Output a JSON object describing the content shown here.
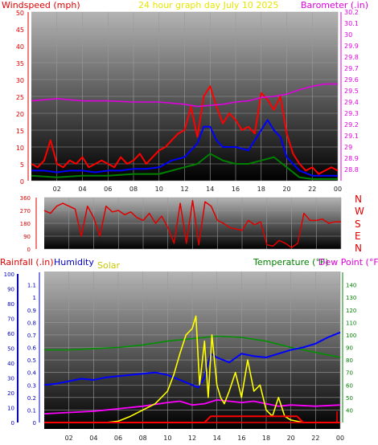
{
  "colors": {
    "wind_label": "#e00000",
    "title": "#e6e600",
    "baro": "#e000e0",
    "rain": "#e00000",
    "humidity": "#0000c8",
    "solar": "#c8c800",
    "temp": "#008000",
    "dew": "#e000e0",
    "windspeed": "#ff0000",
    "windavg": "#0000ff",
    "windlow": "#008000",
    "barometer": "#e000e0",
    "direction": "#e00000",
    "solarline": "#ffff00",
    "humline": "#0000ff",
    "templine": "#009000",
    "dewline": "#ff00ff",
    "rainline": "#ff0000"
  },
  "header": {
    "windspeed_label": "Windspeed (mph)",
    "title": "24 hour graph day   July 10 2025",
    "barometer_label": "Barometer (.in)"
  },
  "dir_labels": [
    "N",
    "W",
    "S",
    "E",
    "N"
  ],
  "bottom_header": {
    "rainfall": "Rainfall (.in)",
    "humidity": "Humidity",
    "solar": "Solar",
    "temperature": "Temperature (°F)",
    "dewpoint": "Dew Point (°F)"
  },
  "chart_data": [
    {
      "type": "line",
      "xlabel": "",
      "ylabel": "Windspeed (mph)",
      "x_ticks": [
        "02",
        "04",
        "06",
        "08",
        "10",
        "12",
        "14",
        "16",
        "18",
        "20",
        "22",
        "00"
      ],
      "xlim": [
        0,
        24
      ],
      "ylim": [
        0,
        50
      ],
      "y_ticks": [
        0,
        5,
        10,
        15,
        20,
        25,
        30,
        35,
        40,
        45,
        50
      ],
      "y2label": "Barometer (.in)",
      "y2lim": [
        28.7,
        30.2
      ],
      "y2_ticks": [
        "28.8",
        "28.9",
        "29",
        "29.1",
        "29.2",
        "29.3",
        "29.4",
        "29.5",
        "29.6",
        "29.7",
        "29.8",
        "29.9",
        "30",
        "30.1",
        "30.2"
      ],
      "series": [
        {
          "name": "Windspeed",
          "x": [
            0,
            0.5,
            1,
            1.5,
            2,
            2.5,
            3,
            3.5,
            4,
            4.5,
            5,
            5.5,
            6,
            6.5,
            7,
            7.5,
            8,
            8.5,
            9,
            9.5,
            10,
            10.5,
            11,
            11.5,
            12,
            12.5,
            13,
            13.5,
            14,
            14.5,
            15,
            15.5,
            16,
            16.5,
            17,
            17.5,
            18,
            18.5,
            19,
            19.5,
            20,
            20.5,
            21,
            21.5,
            22,
            22.5,
            23,
            23.5,
            24
          ],
          "values": [
            5,
            4,
            6,
            12,
            5,
            4,
            6,
            5,
            7,
            4,
            5,
            6,
            5,
            4,
            7,
            5,
            6,
            8,
            5,
            7,
            9,
            10,
            12,
            14,
            15,
            22,
            13,
            25,
            28,
            22,
            17,
            20,
            18,
            15,
            16,
            14,
            26,
            24,
            21,
            25,
            14,
            8,
            5,
            3,
            4,
            2,
            3,
            4,
            3
          ]
        },
        {
          "name": "Average",
          "x": [
            0,
            1,
            2,
            3,
            4,
            5,
            6,
            7,
            8,
            9,
            10,
            11,
            12,
            12.5,
            13,
            13.5,
            14,
            14.5,
            15,
            16,
            17,
            18,
            18.5,
            19,
            19.5,
            20,
            21,
            22,
            23,
            24
          ],
          "values": [
            3,
            3,
            2.5,
            3,
            3,
            2.5,
            3,
            3,
            3.5,
            3.5,
            4,
            6,
            7,
            9,
            11,
            16,
            16,
            12,
            10,
            10,
            9,
            15,
            18,
            15,
            13,
            7,
            3,
            1.5,
            1.5,
            1.5
          ]
        },
        {
          "name": "Low",
          "x": [
            0,
            2,
            4,
            6,
            8,
            10,
            11,
            12,
            13,
            14,
            15,
            16,
            17,
            18,
            19,
            20,
            21,
            22,
            24
          ],
          "values": [
            1.5,
            1,
            1.5,
            1.5,
            2,
            2,
            3,
            4,
            5,
            8,
            6,
            5,
            5,
            6,
            7,
            4,
            1,
            0.5,
            0.5
          ]
        },
        {
          "name": "Barometer",
          "x": [
            0,
            2,
            4,
            6,
            8,
            10,
            12,
            13,
            14,
            15,
            16,
            17,
            18,
            19,
            20,
            21,
            22,
            23,
            24
          ],
          "values": [
            29.41,
            29.43,
            29.41,
            29.41,
            29.4,
            29.4,
            29.38,
            29.36,
            29.37,
            29.38,
            29.4,
            29.41,
            29.44,
            29.45,
            29.47,
            29.51,
            29.54,
            29.56,
            29.56
          ]
        }
      ]
    },
    {
      "type": "line",
      "ylabel": "Wind direction",
      "ylim": [
        0,
        360
      ],
      "y_ticks": [
        0,
        90,
        180,
        270,
        360
      ],
      "xlim": [
        0,
        24
      ],
      "series": [
        {
          "name": "Direction",
          "x": [
            0,
            0.5,
            1,
            1.5,
            2,
            2.5,
            3,
            3.5,
            4,
            4.5,
            5,
            5.5,
            6,
            6.5,
            7,
            7.5,
            8,
            8.5,
            9,
            9.5,
            10,
            10.5,
            11,
            11.5,
            12,
            12.5,
            13,
            13.5,
            14,
            14.5,
            15,
            15.5,
            16,
            16.5,
            17,
            17.5,
            18,
            18.5,
            19,
            19.5,
            20,
            20.5,
            21,
            21.5,
            22,
            22.5,
            23,
            23.5,
            24
          ],
          "values": [
            270,
            250,
            300,
            320,
            300,
            280,
            90,
            300,
            220,
            90,
            300,
            260,
            270,
            240,
            260,
            220,
            200,
            250,
            180,
            230,
            150,
            40,
            320,
            40,
            340,
            30,
            330,
            300,
            200,
            180,
            150,
            140,
            130,
            200,
            170,
            190,
            30,
            20,
            60,
            40,
            10,
            40,
            250,
            200,
            200,
            210,
            180,
            190,
            190
          ]
        }
      ]
    },
    {
      "type": "line",
      "y_left_outer_label": "Rainfall (.in)",
      "y_left_outer_lim": [
        0,
        100
      ],
      "y_left_outer_ticks": [
        0,
        10,
        20,
        30,
        40,
        50,
        60,
        70,
        80,
        90,
        100
      ],
      "y_left_label": "Humidity",
      "y_left_lim": [
        0,
        1.2
      ],
      "y_left_ticks": [
        "0",
        "0.1",
        "0.2",
        "0.3",
        "0.4",
        "0.5",
        "0.6",
        "0.7",
        "0.8",
        "0.9",
        "1",
        "1.1"
      ],
      "y_right_label": "Temperature (°F)",
      "y_right_lim": [
        30,
        150
      ],
      "y_right_ticks": [
        40,
        50,
        60,
        70,
        80,
        90,
        100,
        110,
        120,
        130,
        140
      ],
      "x_ticks": [
        "02",
        "04",
        "06",
        "08",
        "10",
        "12",
        "14",
        "16",
        "18",
        "20",
        "22",
        "00"
      ],
      "xlim": [
        0,
        24
      ],
      "series": [
        {
          "name": "Humidity",
          "x": [
            0,
            1,
            2,
            3,
            4,
            5,
            6,
            7,
            8,
            9,
            10,
            11,
            12,
            12.5,
            13,
            13.5,
            14,
            15,
            16,
            17,
            18,
            19,
            20,
            21,
            22,
            23,
            24
          ],
          "values": [
            0.3,
            0.31,
            0.33,
            0.35,
            0.34,
            0.36,
            0.37,
            0.38,
            0.39,
            0.4,
            0.38,
            0.34,
            0.3,
            0.28,
            0.36,
            0.55,
            0.52,
            0.48,
            0.55,
            0.53,
            0.52,
            0.55,
            0.58,
            0.6,
            0.63,
            0.68,
            0.72
          ]
        },
        {
          "name": "Solar",
          "x": [
            0,
            5,
            6,
            7,
            8,
            9,
            10,
            10.5,
            11,
            11.5,
            12,
            12.3,
            12.6,
            13,
            13.3,
            13.6,
            14,
            14.3,
            14.6,
            15,
            15.5,
            16,
            16.5,
            17,
            17.5,
            18,
            18.5,
            19,
            19.5,
            20,
            21,
            22,
            24
          ],
          "values": [
            0,
            0,
            0.01,
            0.05,
            0.1,
            0.15,
            0.25,
            0.38,
            0.55,
            0.7,
            0.75,
            0.85,
            0.3,
            0.65,
            0.2,
            0.7,
            0.3,
            0.2,
            0.15,
            0.25,
            0.4,
            0.2,
            0.5,
            0.25,
            0.3,
            0.1,
            0.05,
            0.2,
            0.05,
            0.02,
            0,
            0,
            0
          ]
        },
        {
          "name": "Temperature",
          "x": [
            0,
            2,
            4,
            6,
            8,
            10,
            12,
            14,
            16,
            18,
            20,
            22,
            24
          ],
          "values": [
            88,
            88,
            89,
            90,
            92,
            95,
            97,
            99,
            98,
            95,
            90,
            86,
            82
          ]
        },
        {
          "name": "Dew Point",
          "x": [
            0,
            2,
            4,
            6,
            8,
            10,
            11,
            12,
            13,
            14,
            15,
            16,
            17,
            18,
            19,
            20,
            22,
            24
          ],
          "values": [
            37,
            38,
            39,
            41,
            43,
            46,
            47,
            44,
            45,
            48,
            47,
            46,
            47,
            45,
            43,
            44,
            43,
            44
          ]
        },
        {
          "name": "Rainfall",
          "x": [
            0,
            13,
            13.5,
            14,
            20.5,
            21,
            24
          ],
          "values": [
            0,
            0,
            0.05,
            0.05,
            0.05,
            0,
            0
          ]
        }
      ]
    }
  ]
}
